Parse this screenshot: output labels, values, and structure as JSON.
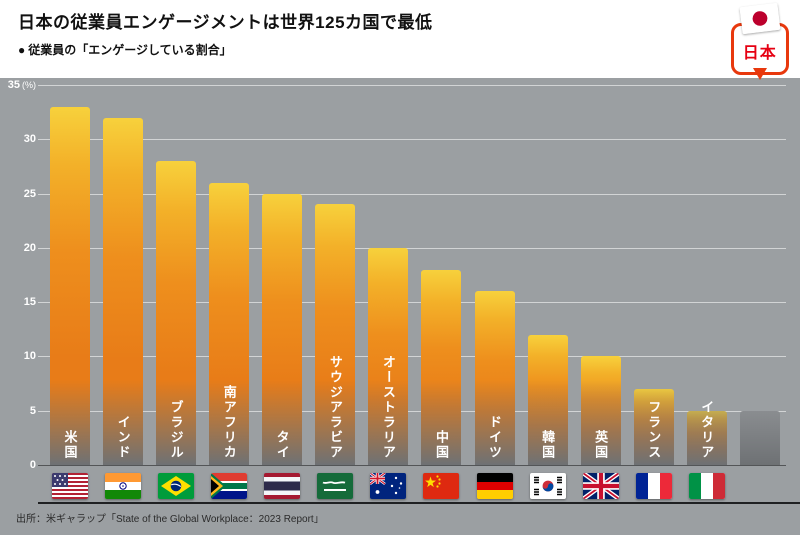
{
  "header": {
    "title": "日本の従業員エンゲージメントは世界125カ国で最低",
    "bullet": "●",
    "subtitle": "従業員の「エンゲージしている割合」"
  },
  "chart_data": {
    "type": "bar",
    "title": "日本の従業員エンゲージメントは世界125カ国で最低",
    "subtitle": "従業員の「エンゲージしている割合」",
    "unit": "(%)",
    "ylim": [
      0,
      35
    ],
    "yticks": [
      0,
      5,
      10,
      15,
      20,
      25,
      30,
      35
    ],
    "grid": true,
    "legend": false,
    "categories": [
      "米国",
      "インド",
      "ブラジル",
      "南アフリカ",
      "タイ",
      "サウジアラビア",
      "オーストラリア",
      "中国",
      "ドイツ",
      "韓国",
      "英国",
      "フランス",
      "イタリア",
      "日本"
    ],
    "values": [
      33,
      32,
      28,
      26,
      25,
      24,
      20,
      18,
      16,
      12,
      10,
      7,
      5,
      5
    ],
    "flags": [
      "us",
      "in",
      "br",
      "za",
      "th",
      "sa",
      "au",
      "cn",
      "de",
      "kr",
      "gb",
      "fr",
      "it",
      "jp"
    ],
    "highlight": {
      "category": "日本",
      "label": "日本",
      "flag": "jp"
    },
    "colors": {
      "background": "#9b9fa2",
      "bar_top": "#f7d13c",
      "bar_mid": "#ec831b",
      "bar_fade": "#6e7174",
      "muted_bar": "#7d8083",
      "callout_border": "#e8380d",
      "callout_text": "#e60012"
    }
  },
  "footer": {
    "source": "出所：米ギャラップ「State of the Global Workplace：2023 Report」"
  }
}
